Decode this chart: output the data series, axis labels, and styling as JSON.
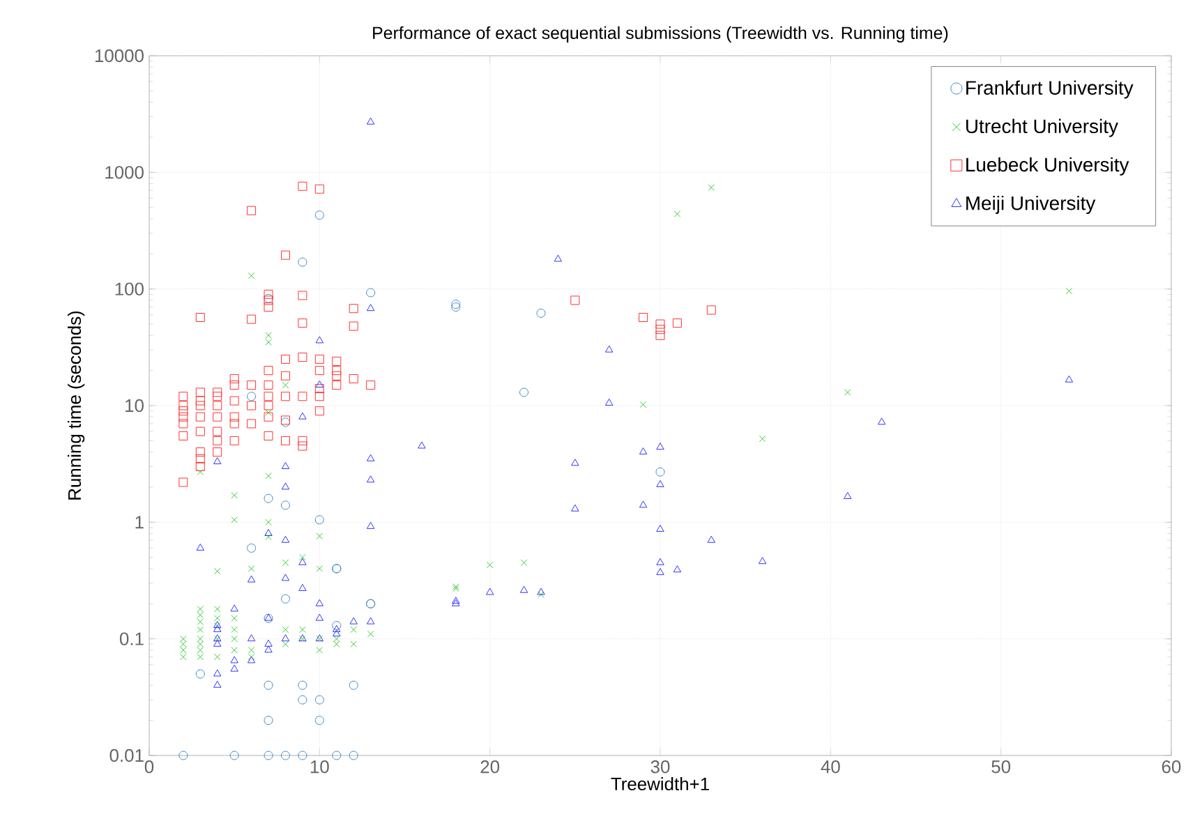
{
  "chart_data": {
    "type": "scatter",
    "title": "Performance of exact sequential submissions (Treewidth vs. Running time)",
    "xlabel": "Treewidth+1",
    "ylabel": "Running time (seconds)",
    "xlim": [
      0,
      60
    ],
    "xticks": [
      0,
      10,
      20,
      30,
      40,
      50,
      60
    ],
    "ylim": [
      0.01,
      10000
    ],
    "yticks": [
      0.01,
      0.1,
      1,
      10,
      100,
      1000,
      10000
    ],
    "log": "y",
    "grid": true,
    "legend": "top right",
    "series": [
      {
        "name": "Frankfurt University",
        "color": "#3a86c6",
        "marker": "circle",
        "x": [
          2,
          5,
          7,
          8,
          9,
          11,
          12,
          3,
          7,
          9,
          12,
          9,
          10,
          7,
          10,
          13,
          10,
          11,
          6,
          7,
          8,
          11,
          8,
          7,
          11,
          13,
          10,
          9,
          13,
          7,
          6,
          8,
          18,
          18,
          23,
          22,
          30
        ],
        "values": [
          0.01,
          0.01,
          0.01,
          0.01,
          0.01,
          0.01,
          0.01,
          0.05,
          0.04,
          0.04,
          0.04,
          0.03,
          0.03,
          0.02,
          0.02,
          0.2,
          1.05,
          0.4,
          0.6,
          1.6,
          1.4,
          0.4,
          0.22,
          0.15,
          0.13,
          0.2,
          430,
          170,
          93,
          83,
          12,
          7.2,
          74,
          70,
          62,
          13,
          2.7
        ]
      },
      {
        "name": "Utrecht University",
        "color": "#33cc33",
        "marker": "cross",
        "x": [
          2,
          2,
          2,
          2,
          3,
          3,
          3,
          3,
          3,
          3,
          3,
          3,
          3,
          4,
          4,
          4,
          4,
          4,
          4,
          5,
          5,
          5,
          5,
          5,
          5,
          6,
          6,
          6,
          6,
          7,
          7,
          7,
          7,
          7,
          7,
          8,
          8,
          8,
          8,
          9,
          9,
          9,
          10,
          10,
          10,
          10,
          11,
          11,
          12,
          12,
          13,
          18,
          18,
          20,
          22,
          23,
          29,
          31,
          33,
          36,
          41,
          54
        ],
        "values": [
          0.07,
          0.08,
          0.09,
          0.1,
          0.07,
          0.08,
          0.09,
          0.1,
          0.12,
          0.14,
          0.16,
          0.18,
          2.7,
          0.07,
          0.1,
          0.13,
          0.15,
          0.18,
          0.38,
          1.05,
          1.7,
          0.08,
          0.1,
          0.12,
          0.15,
          130,
          0.4,
          0.08,
          0.07,
          40,
          35,
          8.7,
          2.5,
          1.0,
          0.75,
          15,
          0.45,
          0.12,
          0.09,
          0.5,
          0.1,
          0.12,
          0.76,
          0.4,
          0.1,
          0.08,
          0.09,
          0.1,
          0.09,
          0.12,
          0.11,
          0.28,
          0.27,
          0.43,
          0.45,
          0.24,
          10.2,
          440,
          740,
          5.2,
          13,
          96
        ]
      },
      {
        "name": "Luebeck University",
        "color": "#ff3333",
        "marker": "square",
        "x": [
          2,
          2,
          2,
          2,
          2,
          2,
          2,
          3,
          3,
          3,
          3,
          3,
          3,
          3,
          3,
          3,
          4,
          4,
          4,
          4,
          4,
          4,
          4,
          5,
          5,
          5,
          5,
          5,
          5,
          6,
          6,
          6,
          6,
          6,
          7,
          7,
          7,
          7,
          7,
          7,
          7,
          7,
          7,
          8,
          8,
          8,
          8,
          8,
          8,
          9,
          9,
          9,
          9,
          9,
          9,
          9,
          10,
          10,
          10,
          10,
          10,
          10,
          11,
          11,
          11,
          11,
          12,
          12,
          12,
          13,
          25,
          29,
          30,
          30,
          30,
          31,
          33
        ],
        "values": [
          2.2,
          5.5,
          7,
          8,
          9,
          10,
          12,
          57,
          3,
          3.5,
          4,
          6,
          8,
          10,
          11,
          13,
          4,
          5,
          6,
          8,
          10,
          12,
          13,
          17,
          15,
          11,
          7,
          5,
          8,
          470,
          55,
          15,
          10,
          7,
          90,
          80,
          70,
          20,
          15,
          12,
          10,
          8,
          5.5,
          195,
          25,
          18,
          12,
          7.5,
          5,
          760,
          88,
          51,
          26,
          12,
          5,
          4.5,
          720,
          25,
          20,
          14,
          12,
          9,
          24,
          20,
          18,
          15,
          68,
          48,
          17,
          15,
          80,
          57,
          50,
          45,
          40,
          51,
          66
        ]
      },
      {
        "name": "Meiji University",
        "color": "#3333ff",
        "marker": "triangle",
        "x": [
          3,
          4,
          4,
          4,
          4,
          4,
          4,
          4,
          5,
          5,
          5,
          6,
          6,
          6,
          7,
          7,
          7,
          7,
          8,
          8,
          8,
          8,
          8,
          9,
          9,
          9,
          9,
          10,
          10,
          10,
          10,
          10,
          11,
          11,
          12,
          13,
          13,
          13,
          13,
          13,
          13,
          16,
          18,
          18,
          20,
          22,
          23,
          24,
          25,
          25,
          27,
          27,
          29,
          29,
          30,
          30,
          30,
          30,
          30,
          31,
          33,
          36,
          41,
          43,
          54
        ],
        "values": [
          0.6,
          3.3,
          0.05,
          0.04,
          0.1,
          0.12,
          0.13,
          0.09,
          0.055,
          0.065,
          0.18,
          0.32,
          0.1,
          0.065,
          0.8,
          0.15,
          0.09,
          0.08,
          3.0,
          2.0,
          0.7,
          0.33,
          0.1,
          8,
          0.45,
          0.27,
          0.1,
          36,
          15,
          0.2,
          0.15,
          0.1,
          0.12,
          0.11,
          0.14,
          2700,
          68,
          3.5,
          2.3,
          0.92,
          0.14,
          4.5,
          0.2,
          0.21,
          0.25,
          0.26,
          0.25,
          180,
          3.2,
          1.3,
          30,
          10.5,
          4.0,
          1.4,
          4.4,
          2.1,
          0.87,
          0.45,
          0.37,
          0.39,
          0.7,
          0.46,
          1.66,
          7.2,
          16.6
        ]
      }
    ]
  }
}
